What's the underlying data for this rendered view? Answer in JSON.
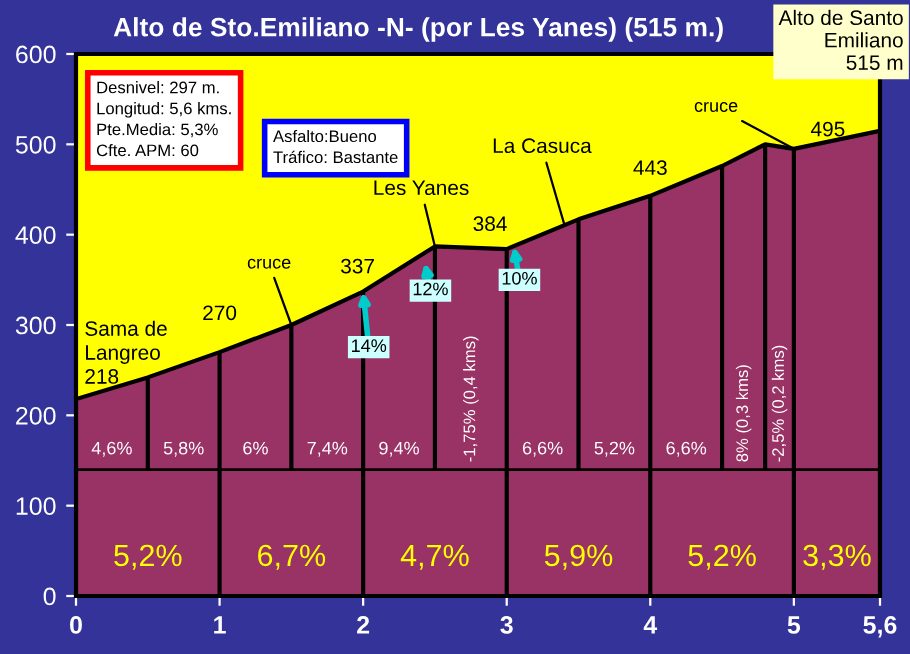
{
  "chart_data": {
    "type": "area",
    "title": "Alto de Sto.Emiliano -N- (por Les Yanes) (515 m.)",
    "x": [
      0,
      0.5,
      1,
      1.5,
      2,
      2.5,
      3,
      3.5,
      4,
      4.5,
      4.8,
      5,
      5.6
    ],
    "series": [
      {
        "color": "#993366",
        "values": [
          218,
          242,
          270,
          300,
          337,
          387,
          384,
          417,
          443,
          476,
          500,
          495,
          515
        ]
      }
    ],
    "xlim": [
      0,
      5.6
    ],
    "xticks": [
      0,
      1,
      2,
      3,
      4,
      5,
      {
        "value": 5.6,
        "label": "5,6"
      }
    ],
    "ylim": [
      0,
      600
    ],
    "yticks": [
      0,
      100,
      200,
      300,
      400,
      500,
      600
    ],
    "grid": "x",
    "legend": false,
    "ref_lines": [
      {
        "axis": "y",
        "value": 140,
        "label": null,
        "color": "#000000"
      }
    ],
    "annotations": [
      "Desnivel: 297 m.\nLongitud: 5,6 kms.\nPte.Media: 5,3%\nCfte. APM: 60",
      "Asfalto:Bueno\nTráfico: Bastante",
      {
        "text": "Alto de Santo\nEmiliano\n515 m",
        "x": 5.6,
        "y": 515
      },
      {
        "text": "Sama de\nLangreo\n218",
        "x": 0,
        "y": 218
      },
      {
        "text": "270",
        "x": 1,
        "y": 270
      },
      {
        "text": "cruce",
        "x": 1.5,
        "y": 300
      },
      {
        "text": "337",
        "x": 2,
        "y": 337
      },
      {
        "text": "Les Yanes",
        "x": 2.5,
        "y": 387
      },
      {
        "text": "384",
        "x": 3,
        "y": 384
      },
      {
        "text": "La Casuca",
        "x": 3.4,
        "y": 412
      },
      {
        "text": "443",
        "x": 4,
        "y": 443
      },
      {
        "text": "cruce",
        "x": 5,
        "y": 495
      },
      {
        "text": "495",
        "x": 5,
        "y": 495
      },
      {
        "text": "14%",
        "x": 2,
        "y": 337
      },
      {
        "text": "12%",
        "x": 2.43,
        "y": 369
      },
      {
        "text": "10%",
        "x": 3.05,
        "y": 387
      },
      "4,6%",
      "5,8%",
      "6%",
      "7,4%",
      "9,4%",
      "-1,75% (0,4 kms)",
      "6,6%",
      "5,2%",
      "6,6%",
      "8% (0,3 kms)",
      "-2,5% (0,2 kms)",
      "5,2%",
      "6,7%",
      "4,7%",
      "5,9%",
      "5,2%",
      "3,3%"
    ]
  }
}
